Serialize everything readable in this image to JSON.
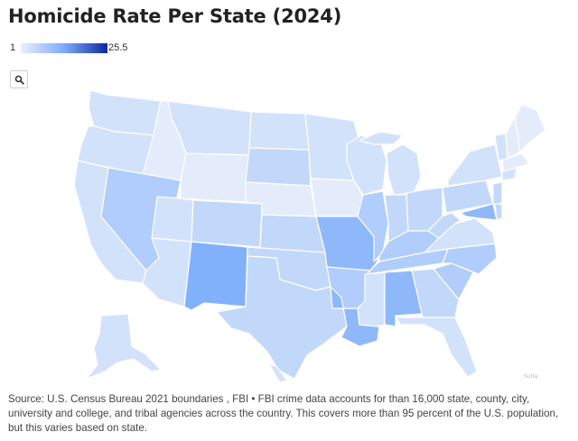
{
  "title": "Homicide Rate Per State (2024)",
  "legend": {
    "min": "1",
    "max": "25.5",
    "colors": [
      "#e8efff",
      "#7fa9ff",
      "#0b2a9e"
    ]
  },
  "search": {
    "icon": "search-icon"
  },
  "map": {
    "fill_colors": {
      "pale": "#e4ebfb",
      "light": "#d3e2fb",
      "med": "#c2d8fb",
      "medplus": "#b0cdfb",
      "strong": "#8fb8fb",
      "nm": "#82b1fc"
    },
    "states": [
      "WA",
      "OR",
      "CA",
      "ID",
      "NV",
      "MT",
      "WY",
      "UT",
      "AZ",
      "CO",
      "NM",
      "ND",
      "SD",
      "NE",
      "KS",
      "OK",
      "TX",
      "MN",
      "IA",
      "MO",
      "AR",
      "LA",
      "WI",
      "IL",
      "MI",
      "IN",
      "OH",
      "KY",
      "TN",
      "MS",
      "AL",
      "GA",
      "FL",
      "SC",
      "NC",
      "VA",
      "WV",
      "PA",
      "NY",
      "VT",
      "NH",
      "ME",
      "MA",
      "CT",
      "NJ",
      "MD",
      "DE",
      "AK",
      "HI"
    ]
  },
  "source": "Source: U.S. Census Bureau 2021 boundaries , FBI • FBI crime data accounts for than 16,000 state, county, city, university and college, and tribal agencies across the country. This covers more than 95 percent of the U.S. population, but this varies based on state."
}
